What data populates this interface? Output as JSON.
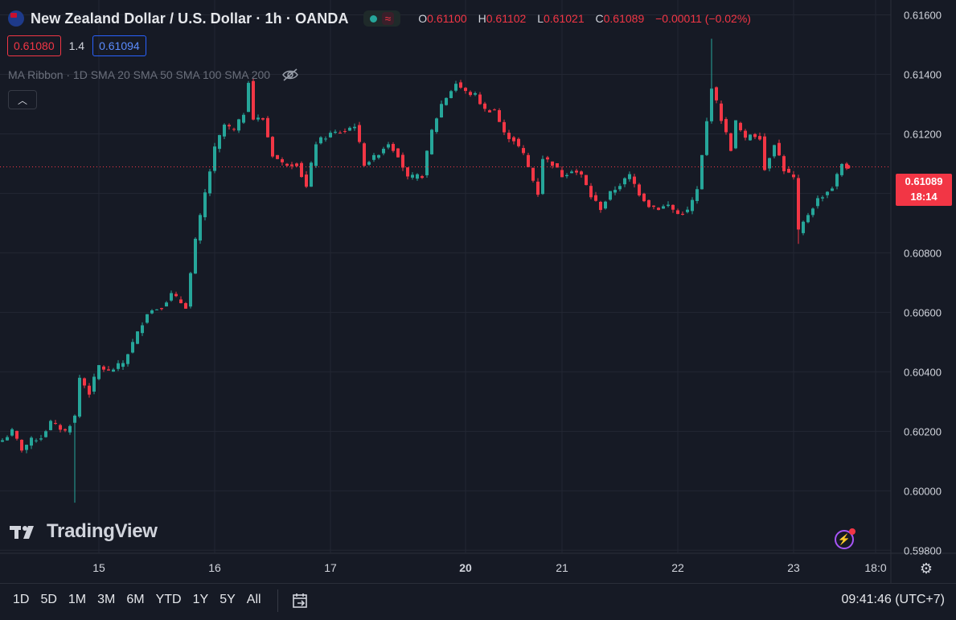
{
  "header": {
    "symbol": "New Zealand Dollar / U.S. Dollar · 1h · OANDA",
    "ohlc": {
      "o_label": "O",
      "o": "0.61100",
      "h_label": "H",
      "h": "0.61102",
      "l_label": "L",
      "l": "0.61021",
      "c_label": "C",
      "c": "0.61089",
      "change": "−0.00011 (−0.02%)"
    },
    "market_pill_icon": "live-dot-icon",
    "wave_icon": "wave-icon"
  },
  "quote": {
    "bid": "0.61080",
    "spread": "1.4",
    "ask": "0.61094"
  },
  "indicator": {
    "label": "MA Ribbon · 1D SMA 20 SMA 50 SMA 100 SMA 200",
    "icon": "eye-slash-icon"
  },
  "logo": {
    "text": "TradingView"
  },
  "last_price": {
    "value": "0.61089",
    "countdown": "18:14"
  },
  "timeframes": [
    "1D",
    "5D",
    "1M",
    "3M",
    "6M",
    "YTD",
    "1Y",
    "5Y",
    "All"
  ],
  "clock": "09:41:46 (UTC+7)",
  "colors": {
    "bg": "#161a25",
    "grid": "#232733",
    "up": "#26a69a",
    "down": "#f23645",
    "text": "#d1d4dc",
    "muted": "#6a6f7b",
    "accent": "#2962ff"
  },
  "chart_data": {
    "type": "candlestick",
    "title": "New Zealand Dollar / U.S. Dollar · 1h · OANDA",
    "xlabel": "",
    "ylabel": "",
    "ylim": [
      0.5979,
      0.6165
    ],
    "y_ticks": [
      "0.61600",
      "0.61400",
      "0.61200",
      "0.61000",
      "0.60800",
      "0.60600",
      "0.60400",
      "0.60200",
      "0.60000",
      "0.59800"
    ],
    "x_ticks": [
      {
        "label": "15",
        "bold": false,
        "bar": 20
      },
      {
        "label": "16",
        "bold": false,
        "bar": 44
      },
      {
        "label": "17",
        "bold": false,
        "bar": 68
      },
      {
        "label": "20",
        "bold": true,
        "bar": 96
      },
      {
        "label": "21",
        "bold": false,
        "bar": 116
      },
      {
        "label": "22",
        "bold": false,
        "bar": 140
      },
      {
        "label": "23",
        "bold": false,
        "bar": 164
      },
      {
        "label": "18:0",
        "bold": false,
        "bar": 181
      }
    ],
    "last": 0.61089,
    "grid": true,
    "pivots": [
      [
        0,
        0.6017
      ],
      [
        2,
        0.602
      ],
      [
        4,
        0.6014
      ],
      [
        6,
        0.6017
      ],
      [
        8,
        0.6018
      ],
      [
        10,
        0.6023
      ],
      [
        13,
        0.602
      ],
      [
        15,
        0.6025
      ],
      [
        16,
        0.6038
      ],
      [
        18,
        0.6033
      ],
      [
        20,
        0.6042
      ],
      [
        22,
        0.604
      ],
      [
        25,
        0.6043
      ],
      [
        28,
        0.6053
      ],
      [
        30,
        0.606
      ],
      [
        33,
        0.6062
      ],
      [
        35,
        0.6066
      ],
      [
        38,
        0.6062
      ],
      [
        40,
        0.6084
      ],
      [
        42,
        0.61
      ],
      [
        44,
        0.6115
      ],
      [
        46,
        0.6123
      ],
      [
        48,
        0.6121
      ],
      [
        50,
        0.6127
      ],
      [
        51,
        0.6138
      ],
      [
        52,
        0.6125
      ],
      [
        54,
        0.6125
      ],
      [
        56,
        0.6113
      ],
      [
        58,
        0.611
      ],
      [
        61,
        0.611
      ],
      [
        63,
        0.6102
      ],
      [
        65,
        0.6117
      ],
      [
        68,
        0.612
      ],
      [
        71,
        0.6121
      ],
      [
        73,
        0.6123
      ],
      [
        75,
        0.611
      ],
      [
        77,
        0.6112
      ],
      [
        80,
        0.6117
      ],
      [
        82,
        0.6113
      ],
      [
        84,
        0.6105
      ],
      [
        87,
        0.6106
      ],
      [
        89,
        0.6121
      ],
      [
        91,
        0.613
      ],
      [
        94,
        0.6137
      ],
      [
        96,
        0.6134
      ],
      [
        98,
        0.6133
      ],
      [
        100,
        0.6128
      ],
      [
        102,
        0.6128
      ],
      [
        104,
        0.612
      ],
      [
        106,
        0.6118
      ],
      [
        108,
        0.6113
      ],
      [
        111,
        0.61
      ],
      [
        112,
        0.6112
      ],
      [
        114,
        0.611
      ],
      [
        116,
        0.6106
      ],
      [
        118,
        0.6108
      ],
      [
        120,
        0.6106
      ],
      [
        122,
        0.6099
      ],
      [
        124,
        0.6095
      ],
      [
        126,
        0.61
      ],
      [
        128,
        0.6103
      ],
      [
        130,
        0.6106
      ],
      [
        132,
        0.61
      ],
      [
        134,
        0.6096
      ],
      [
        136,
        0.6095
      ],
      [
        138,
        0.6096
      ],
      [
        140,
        0.6093
      ],
      [
        142,
        0.6094
      ],
      [
        144,
        0.6101
      ],
      [
        146,
        0.6124
      ],
      [
        147,
        0.6136
      ],
      [
        149,
        0.6125
      ],
      [
        151,
        0.6115
      ],
      [
        152,
        0.6124
      ],
      [
        154,
        0.6118
      ],
      [
        155,
        0.612
      ],
      [
        157,
        0.6119
      ],
      [
        158,
        0.6108
      ],
      [
        160,
        0.6117
      ],
      [
        162,
        0.6108
      ],
      [
        164,
        0.6105
      ],
      [
        165,
        0.6087
      ],
      [
        167,
        0.6093
      ],
      [
        169,
        0.6098
      ],
      [
        172,
        0.6102
      ],
      [
        174,
        0.611
      ],
      [
        175,
        0.6109
      ]
    ],
    "notable_wicks": [
      {
        "bar": 15,
        "low": 0.5996
      },
      {
        "bar": 147,
        "high": 0.6152
      },
      {
        "bar": 165,
        "low": 0.6083
      }
    ]
  }
}
